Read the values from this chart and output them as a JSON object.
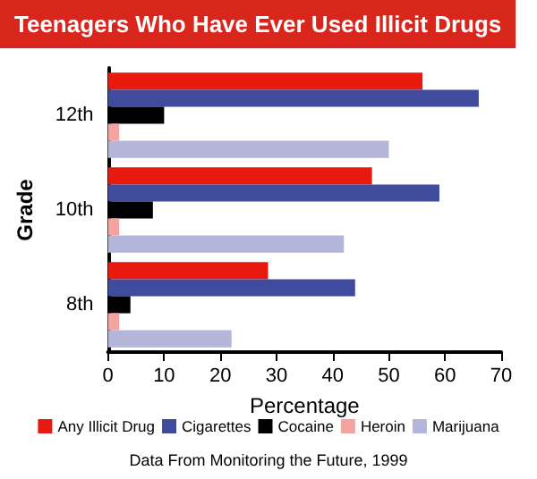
{
  "chart_data": {
    "type": "bar",
    "orientation": "horizontal",
    "title": "Teenagers Who Have Ever Used Illicit Drugs",
    "xlabel": "Percentage",
    "ylabel": "Grade",
    "categories": [
      "12th",
      "10th",
      "8th"
    ],
    "series": [
      {
        "name": "Any Illicit Drug",
        "color": "#e8190f",
        "values": [
          56,
          47,
          28.5
        ]
      },
      {
        "name": "Cigarettes",
        "color": "#3f4b9c",
        "values": [
          66,
          59,
          44
        ]
      },
      {
        "name": "Cocaine",
        "color": "#000000",
        "values": [
          10,
          8,
          4
        ]
      },
      {
        "name": "Heroin",
        "color": "#f4a3a0",
        "values": [
          2,
          2,
          2
        ]
      },
      {
        "name": "Marijuana",
        "color": "#b3b6d9",
        "values": [
          50,
          42,
          22
        ]
      }
    ],
    "xlim": [
      0,
      70
    ],
    "xticks": [
      0,
      10,
      20,
      30,
      40,
      50,
      60,
      70
    ],
    "grid": false,
    "legend": "bottom",
    "annotations": [
      "Data From Monitoring the Future, 1999"
    ]
  }
}
